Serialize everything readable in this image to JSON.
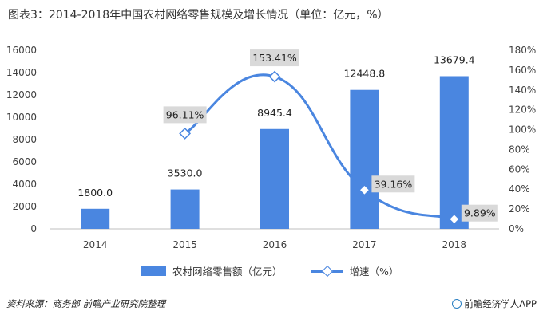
{
  "title": "图表3：2014-2018年中国农村网络零售规模及增长情况（单位：亿元，%）",
  "footer": {
    "source": "资料来源：商务部 前瞻产业研究院整理",
    "app": "前瞻经济学人APP"
  },
  "chart_data": {
    "type": "bar",
    "categories": [
      "2014",
      "2015",
      "2016",
      "2017",
      "2018"
    ],
    "series": [
      {
        "name": "农村网络零售额（亿元）",
        "type": "bar",
        "axis": "left",
        "values": [
          1800.0,
          3530.0,
          8945.4,
          12448.8,
          13679.4
        ],
        "labels": [
          "1800.0",
          "3530.0",
          "8945.4",
          "12448.8",
          "13679.4"
        ],
        "color": "#4a86e0"
      },
      {
        "name": "增速（%）",
        "type": "line",
        "axis": "right",
        "values": [
          null,
          96.11,
          153.41,
          39.16,
          9.89
        ],
        "labels": [
          "",
          "96.11%",
          "153.41%",
          "39.16%",
          "9.89%"
        ],
        "color": "#4a86e0"
      }
    ],
    "y_left": {
      "min": 0,
      "max": 16000,
      "ticks": [
        0,
        2000,
        4000,
        6000,
        8000,
        10000,
        12000,
        14000,
        16000
      ],
      "tick_labels": [
        "0",
        "2000",
        "4000",
        "6000",
        "8000",
        "10000",
        "12000",
        "14000",
        "16000"
      ]
    },
    "y_right": {
      "min": 0,
      "max": 180,
      "ticks": [
        0,
        20,
        40,
        60,
        80,
        100,
        120,
        140,
        160,
        180
      ],
      "tick_labels": [
        "0%",
        "20%",
        "40%",
        "60%",
        "80%",
        "100%",
        "120%",
        "140%",
        "160%",
        "180%"
      ]
    },
    "grid": false,
    "legend": "bottom",
    "xlabel": "",
    "ylabel": ""
  }
}
